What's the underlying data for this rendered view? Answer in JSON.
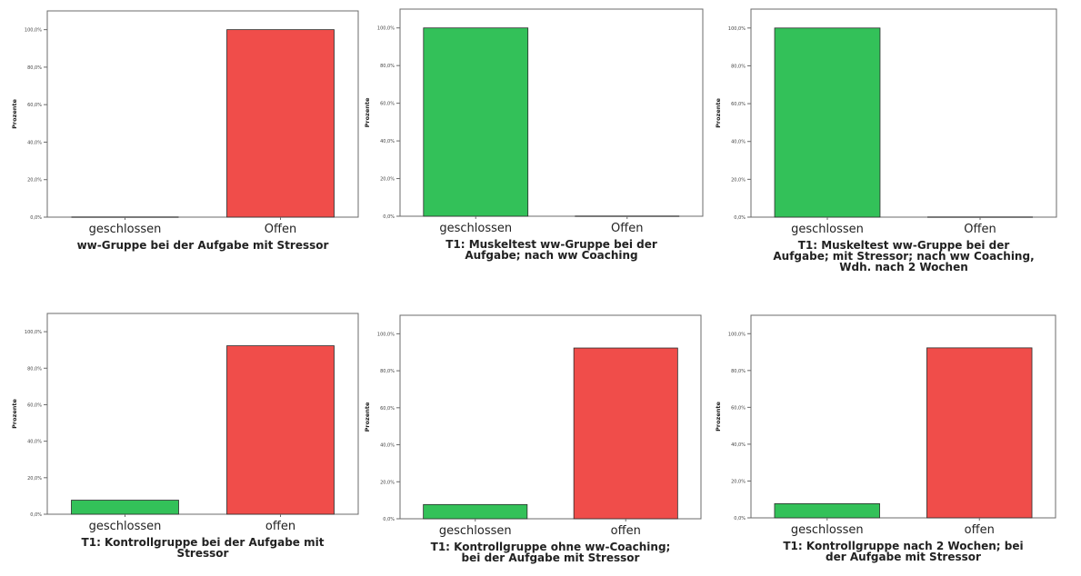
{
  "colors": {
    "geschlossen": "#33c159",
    "offen": "#f04d4a",
    "frame": "#6b6b6b"
  },
  "chart_data": [
    {
      "type": "bar",
      "categories": [
        "geschlossen",
        "Offen"
      ],
      "values": [
        0,
        100
      ],
      "title": [
        "ww-Gruppe bei der Aufgabe mit Stressor"
      ],
      "ylabel": "Prozente",
      "yticks": [
        0,
        20,
        40,
        60,
        80,
        100
      ],
      "tick_labels": [
        "0,0%",
        "20,0%",
        "40,0%",
        "60,0%",
        "80,0%",
        "100,0%"
      ],
      "ylim": [
        0,
        110
      ]
    },
    {
      "type": "bar",
      "categories": [
        "geschlossen",
        "Offen"
      ],
      "values": [
        100,
        0
      ],
      "title": [
        "T1: Muskeltest ww-Gruppe bei der",
        "Aufgabe; nach ww Coaching"
      ],
      "ylabel": "Prozente",
      "yticks": [
        0,
        20,
        40,
        60,
        80,
        100
      ],
      "tick_labels": [
        "0,0%",
        "20,0%",
        "40,0%",
        "60,0%",
        "80,0%",
        "100,0%"
      ],
      "ylim": [
        0,
        110
      ]
    },
    {
      "type": "bar",
      "categories": [
        "geschlossen",
        "Offen"
      ],
      "values": [
        100,
        0
      ],
      "title": [
        "T1: Muskeltest ww-Gruppe bei der",
        "Aufgabe; mit Stressor; nach ww Coaching,",
        "Wdh. nach 2 Wochen"
      ],
      "ylabel": "Prozente",
      "yticks": [
        0,
        20,
        40,
        60,
        80,
        100
      ],
      "tick_labels": [
        "0,0%",
        "20,0%",
        "40,0%",
        "60,0%",
        "80,0%",
        "100,0%"
      ],
      "ylim": [
        0,
        110
      ]
    },
    {
      "type": "bar",
      "categories": [
        "geschlossen",
        "offen"
      ],
      "values": [
        7.7,
        92.3
      ],
      "title": [
        "T1: Kontrollgruppe bei der Aufgabe mit",
        "Stressor"
      ],
      "ylabel": "Prozente",
      "yticks": [
        0,
        20,
        40,
        60,
        80,
        100
      ],
      "tick_labels": [
        "0,0%",
        "20,0%",
        "40,0%",
        "60,0%",
        "80,0%",
        "100,0%"
      ],
      "ylim": [
        0,
        110
      ]
    },
    {
      "type": "bar",
      "categories": [
        "geschlossen",
        "offen"
      ],
      "values": [
        7.7,
        92.3
      ],
      "title": [
        "T1: Kontrollgruppe ohne ww-Coaching;",
        "bei der Aufgabe mit Stressor"
      ],
      "ylabel": "Prozente",
      "yticks": [
        0,
        20,
        40,
        60,
        80,
        100
      ],
      "tick_labels": [
        "0,0%",
        "20,0%",
        "40,0%",
        "60,0%",
        "80,0%",
        "100,0%"
      ],
      "ylim": [
        0,
        110
      ]
    },
    {
      "type": "bar",
      "categories": [
        "geschlossen",
        "offen"
      ],
      "values": [
        7.7,
        92.3
      ],
      "title": [
        "T1: Kontrollgruppe nach 2 Wochen; bei",
        "der Aufgabe mit Stressor"
      ],
      "ylabel": "Prozente",
      "yticks": [
        0,
        20,
        40,
        60,
        80,
        100
      ],
      "tick_labels": [
        "0,0%",
        "20,0%",
        "40,0%",
        "60,0%",
        "80,0%",
        "100,0%"
      ],
      "ylim": [
        0,
        110
      ]
    }
  ]
}
